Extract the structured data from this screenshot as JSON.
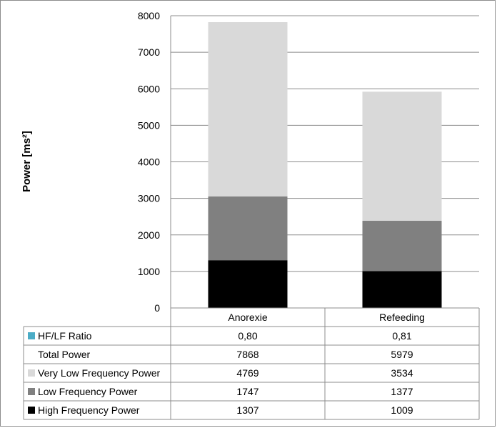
{
  "chart_data": {
    "type": "bar",
    "stacked": true,
    "ylabel": "Power [ms²]",
    "ylim": [
      0,
      8000
    ],
    "yticks": [
      0,
      1000,
      2000,
      3000,
      4000,
      5000,
      6000,
      7000,
      8000
    ],
    "grid": true,
    "categories": [
      "Anorexie",
      "Refeeding"
    ],
    "series": [
      {
        "name": "High Frequency Power",
        "color": "#000000",
        "values": [
          1307,
          1009
        ]
      },
      {
        "name": "Low Frequency Power",
        "color": "#808080",
        "values": [
          1747,
          1377
        ]
      },
      {
        "name": "Very Low Frequency Power",
        "color": "#d9d9d9",
        "values": [
          4769,
          3534
        ]
      }
    ],
    "table": {
      "rows": [
        {
          "label": "HF/LF Ratio",
          "marker": "#4bacc6",
          "values": [
            "0,80",
            "0,81"
          ]
        },
        {
          "label": "Total Power",
          "marker": null,
          "values": [
            "7868",
            "5979"
          ]
        },
        {
          "label": "Very Low Frequency Power",
          "marker": "#d9d9d9",
          "values": [
            "4769",
            "3534"
          ]
        },
        {
          "label": "Low Frequency Power",
          "marker": "#808080",
          "values": [
            "1747",
            "1377"
          ]
        },
        {
          "label": "High Frequency Power",
          "marker": "#000000",
          "values": [
            "1307",
            "1009"
          ]
        }
      ]
    }
  }
}
